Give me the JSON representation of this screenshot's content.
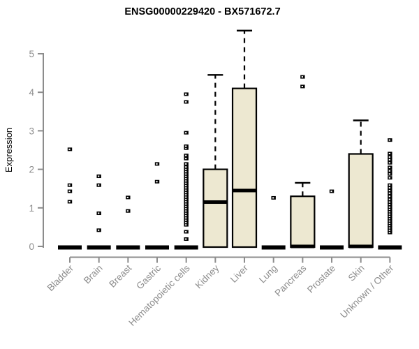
{
  "title": "ENSG00000229420 - BX571672.7",
  "colors": {
    "box_fill": "#ede8d1",
    "box_stroke": "#000000",
    "median": "#000000",
    "whisker": "#000000",
    "outlier": "#000000",
    "axis": "#8c8c8c",
    "tick_label": "#8c8c8c",
    "background": "#ffffff"
  },
  "chart_data": {
    "type": "boxplot",
    "title": "ENSG00000229420 - BX571672.7",
    "xlabel": "",
    "ylabel": "Expression",
    "ylim": [
      0,
      5.7
    ],
    "yticks": [
      0,
      1,
      2,
      3,
      4,
      5
    ],
    "grid": false,
    "legend": "none",
    "categories": [
      "Bladder",
      "Brain",
      "Breast",
      "Gastric",
      "Hematopoietic cells",
      "Kidney",
      "Liver",
      "Lung",
      "Pancreas",
      "Prostate",
      "Skin",
      "Unknown / Other"
    ],
    "boxes": [
      {
        "category": "Bladder",
        "q1": 0,
        "median": 0,
        "q3": 0,
        "whisker_low": 0,
        "whisker_high": 0,
        "outliers": [
          1.16,
          1.43,
          1.59,
          2.52
        ]
      },
      {
        "category": "Brain",
        "q1": 0,
        "median": 0,
        "q3": 0,
        "whisker_low": 0,
        "whisker_high": 0,
        "outliers": [
          0.42,
          0.86,
          1.59,
          1.82
        ]
      },
      {
        "category": "Breast",
        "q1": 0,
        "median": 0,
        "q3": 0,
        "whisker_low": 0,
        "whisker_high": 0,
        "outliers": [
          0.92,
          1.27
        ]
      },
      {
        "category": "Gastric",
        "q1": 0,
        "median": 0,
        "q3": 0,
        "whisker_low": 0,
        "whisker_high": 0,
        "outliers": [
          1.68,
          2.14
        ]
      },
      {
        "category": "Hematopoietic cells",
        "q1": 0,
        "median": 0,
        "q3": 0,
        "whisker_low": 0,
        "whisker_high": 0,
        "outliers": [
          0.19,
          0.38,
          0.56,
          0.62,
          0.68,
          0.74,
          0.8,
          0.86,
          0.92,
          0.98,
          1.04,
          1.1,
          1.16,
          1.22,
          1.28,
          1.34,
          1.4,
          1.46,
          1.52,
          1.58,
          1.64,
          1.7,
          1.76,
          1.82,
          1.88,
          1.94,
          2.0,
          2.06,
          2.14,
          2.28,
          2.36,
          2.55,
          2.6,
          2.95,
          3.75,
          3.95
        ]
      },
      {
        "category": "Kidney",
        "q1": 0,
        "median": 1.15,
        "q3": 2.0,
        "whisker_low": 0,
        "whisker_high": 4.45,
        "outliers": []
      },
      {
        "category": "Liver",
        "q1": 0,
        "median": 1.45,
        "q3": 4.1,
        "whisker_low": 0,
        "whisker_high": 5.6,
        "outliers": []
      },
      {
        "category": "Lung",
        "q1": 0,
        "median": 0,
        "q3": 0,
        "whisker_low": 0,
        "whisker_high": 0,
        "outliers": [
          1.26
        ]
      },
      {
        "category": "Pancreas",
        "q1": 0,
        "median": 0,
        "q3": 1.3,
        "whisker_low": 0,
        "whisker_high": 1.65,
        "outliers": [
          4.15,
          4.4
        ]
      },
      {
        "category": "Prostate",
        "q1": 0,
        "median": 0,
        "q3": 0,
        "whisker_low": 0,
        "whisker_high": 0,
        "outliers": [
          1.43
        ]
      },
      {
        "category": "Skin",
        "q1": 0,
        "median": 0,
        "q3": 2.4,
        "whisker_low": 0,
        "whisker_high": 3.27,
        "outliers": []
      },
      {
        "category": "Unknown / Other",
        "q1": 0,
        "median": 0,
        "q3": 0,
        "whisker_low": 0,
        "whisker_high": 0,
        "outliers": [
          0.36,
          0.42,
          0.48,
          0.54,
          0.6,
          0.66,
          0.72,
          0.78,
          0.84,
          0.9,
          0.96,
          1.02,
          1.09,
          1.15,
          1.22,
          1.3,
          1.38,
          1.45,
          1.52,
          1.59,
          1.78,
          1.88,
          1.96,
          2.05,
          2.17,
          2.25,
          2.32,
          2.41,
          2.76
        ]
      }
    ]
  }
}
